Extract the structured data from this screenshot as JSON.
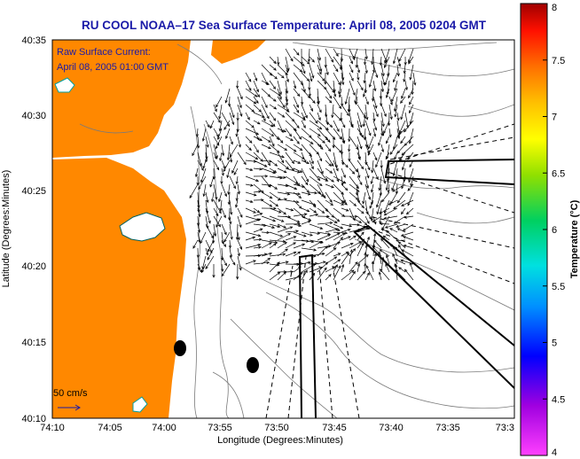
{
  "title": "RU COOL  NOAA–17  Sea Surface Temperature:  April 08, 2005 0204 GMT",
  "current_note": {
    "line1": "Raw Surface Current:",
    "line2": "April 08, 2005 01:00 GMT"
  },
  "scale": {
    "label": "50 cm/s"
  },
  "axes": {
    "xlabel": "Longitude (Degrees:Minutes)",
    "ylabel": "Latitude (Degrees:Minutes)",
    "x_ticks": [
      "74:10",
      "74:05",
      "74:00",
      "73:55",
      "73:50",
      "73:45",
      "73:40",
      "73:35",
      "73:3"
    ],
    "y_ticks": [
      "40:35",
      "40:30",
      "40:25",
      "40:20",
      "40:15",
      "40:10"
    ]
  },
  "colorbar": {
    "label": "Temperature (°C)",
    "ticks": [
      "8",
      "7.5",
      "7",
      "6.5",
      "6",
      "5.5",
      "5",
      "4.5",
      "4"
    ],
    "range": [
      4,
      8
    ]
  },
  "colors": {
    "land": "#ff8800",
    "title": "#1a1aa8",
    "arrows": "#000000",
    "contours": "#808080"
  }
}
